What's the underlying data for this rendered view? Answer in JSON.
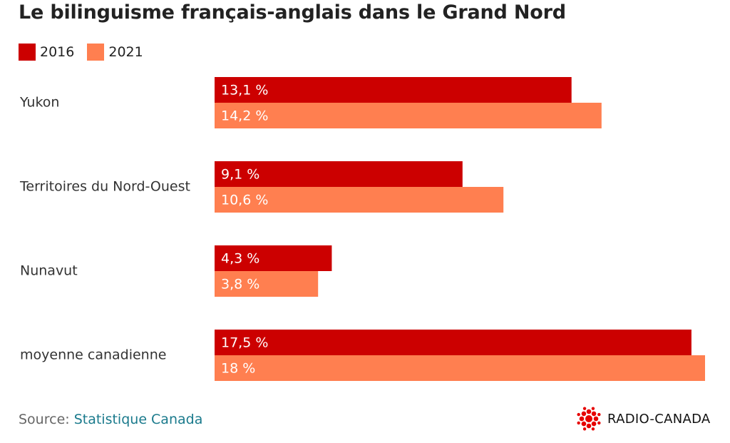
{
  "title": "Le bilinguisme français-anglais dans le Grand Nord",
  "legend": [
    {
      "label": "2016",
      "color": "#cc0000"
    },
    {
      "label": "2021",
      "color": "#ff7f50"
    }
  ],
  "chart_data": {
    "type": "bar",
    "orientation": "horizontal",
    "categories": [
      "Yukon",
      "Territoires du Nord-Ouest",
      "Nunavut",
      "moyenne canadienne"
    ],
    "series": [
      {
        "name": "2016",
        "values": [
          13.1,
          9.1,
          4.3,
          17.5
        ],
        "labels": [
          "13,1 %",
          "9,1 %",
          "4,3 %",
          "17,5 %"
        ],
        "color": "#cc0000"
      },
      {
        "name": "2021",
        "values": [
          14.2,
          10.6,
          3.8,
          18
        ],
        "labels": [
          "14,2 %",
          "10,6 %",
          "3,8 %",
          "18 %"
        ],
        "color": "#ff7f50"
      }
    ],
    "xlim": [
      0,
      18
    ],
    "grid": false,
    "legend_position": "top-left"
  },
  "source": {
    "prefix": "Source: ",
    "name": "Statistique Canada"
  },
  "brand": {
    "name": "RADIO-CANADA",
    "logo_icon": "radio-canada-gem-icon",
    "logo_color": "#e60000"
  }
}
